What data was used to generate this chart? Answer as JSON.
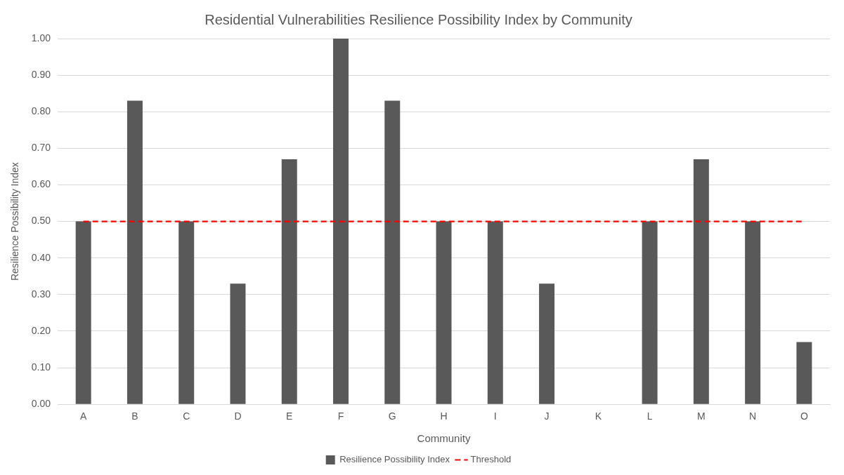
{
  "chart_data": {
    "type": "bar",
    "title": "Residential Vulnerabilities Resilience Possibility Index by Community",
    "xlabel": "Community",
    "ylabel": "Resilience Possibility Index",
    "categories": [
      "A",
      "B",
      "C",
      "D",
      "E",
      "F",
      "G",
      "H",
      "I",
      "J",
      "K",
      "L",
      "M",
      "N",
      "O"
    ],
    "series": [
      {
        "name": "Resilience Possibility Index",
        "color": "#595959",
        "values": [
          0.5,
          0.83,
          0.5,
          0.33,
          0.67,
          1.0,
          0.83,
          0.5,
          0.5,
          0.33,
          0,
          0.5,
          0.67,
          0.5,
          0.17
        ]
      },
      {
        "name": "Threshold",
        "type": "line",
        "color": "#ff0000",
        "line_style": "dashed",
        "marker": "none",
        "values": [
          0.5,
          0.5,
          0.5,
          0.5,
          0.5,
          0.5,
          0.5,
          0.5,
          0.5,
          0.5,
          0.5,
          0.5,
          0.5,
          0.5,
          0.5
        ]
      }
    ],
    "ylim": [
      0,
      1
    ],
    "yticks": [
      {
        "value": 0,
        "label": "0.00"
      },
      {
        "value": 0.1,
        "label": "0.10"
      },
      {
        "value": 0.2,
        "label": "0.20"
      },
      {
        "value": 0.3,
        "label": "0.30"
      },
      {
        "value": 0.4,
        "label": "0.40"
      },
      {
        "value": 0.5,
        "label": "0.50"
      },
      {
        "value": 0.6,
        "label": "0.60"
      },
      {
        "value": 0.7,
        "label": "0.70"
      },
      {
        "value": 0.8,
        "label": "0.80"
      },
      {
        "value": 0.9,
        "label": "0.90"
      },
      {
        "value": 1,
        "label": "1.00"
      }
    ],
    "grid": "y",
    "legend": "bottom"
  }
}
